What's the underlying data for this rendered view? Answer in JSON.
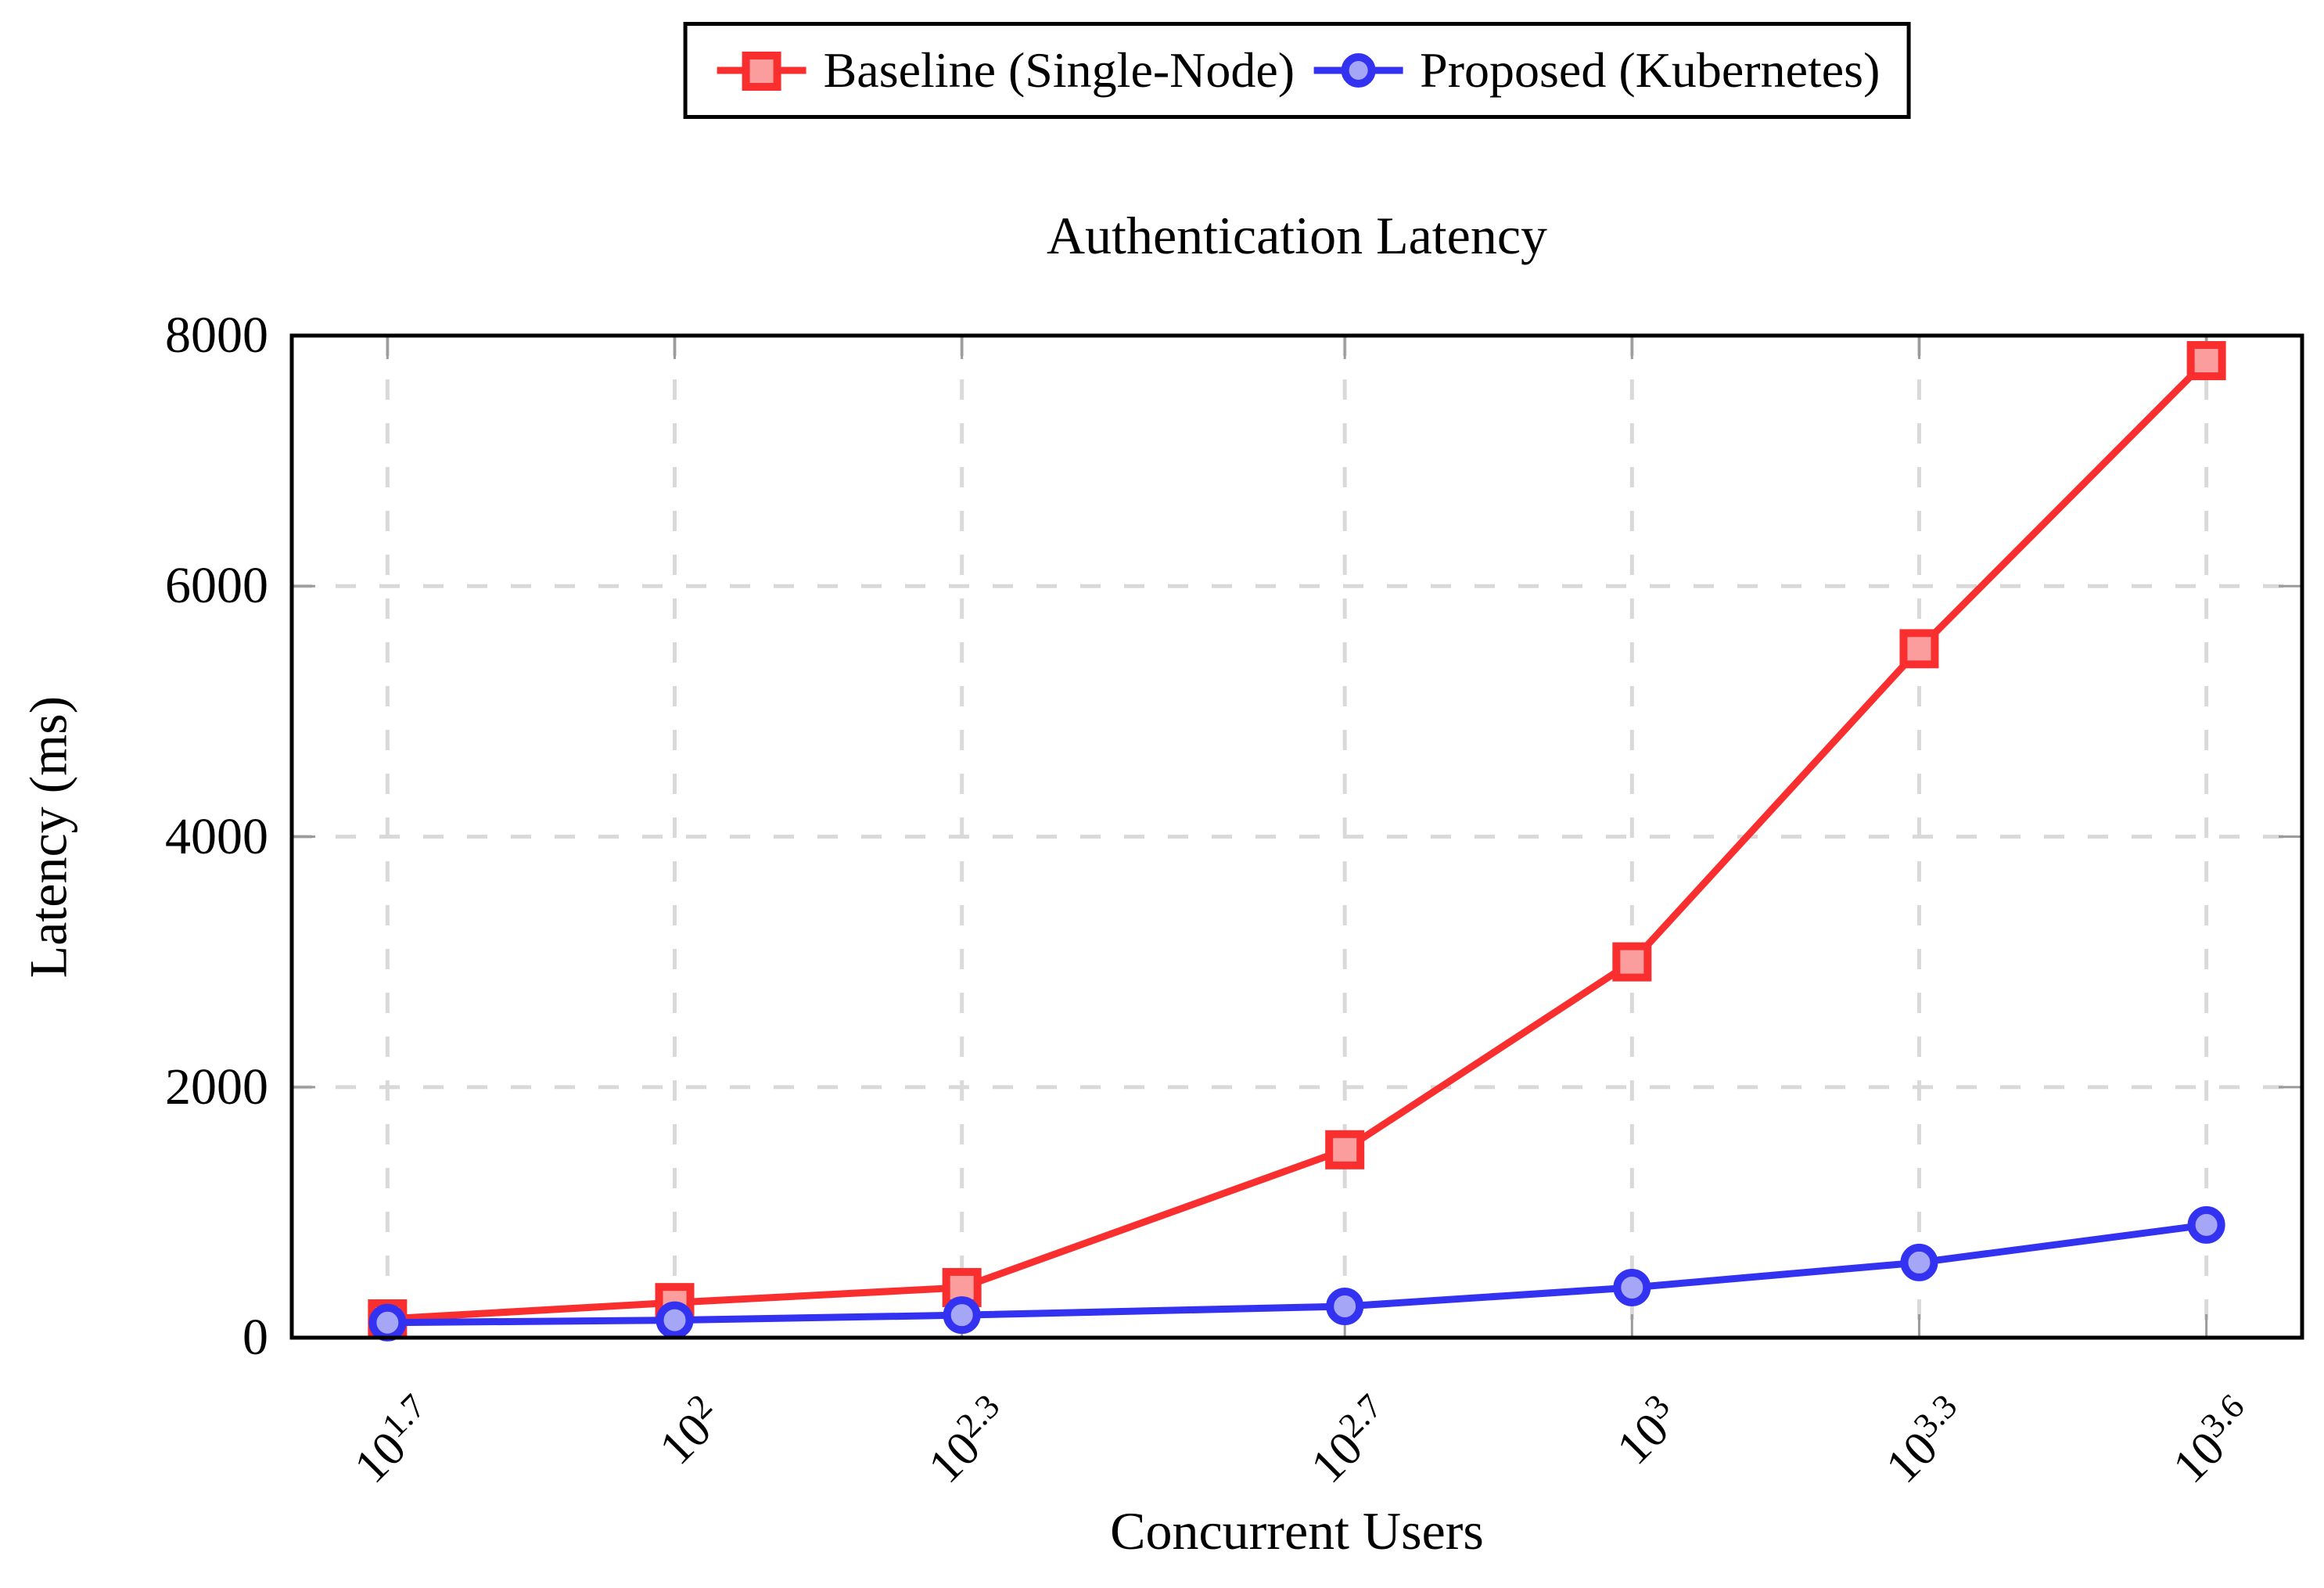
{
  "chart_data": {
    "type": "line",
    "title": "Authentication Latency",
    "xlabel": "Concurrent Users",
    "ylabel": "Latency (ms)",
    "x_scale": "log10",
    "xlim_log10": [
      1.6,
      3.7
    ],
    "ylim": [
      0,
      8000
    ],
    "grid": "dashed",
    "legend_position": "top-center-outside",
    "x_exponents": [
      1.7,
      2,
      2.3,
      2.7,
      3,
      3.3,
      3.6
    ],
    "x_users_approx": [
      50,
      100,
      200,
      500,
      1000,
      2000,
      4000
    ],
    "x_tick_labels": [
      {
        "base": "10",
        "exp": "1.7"
      },
      {
        "base": "10",
        "exp": "2"
      },
      {
        "base": "10",
        "exp": "2.3"
      },
      {
        "base": "10",
        "exp": "2.7"
      },
      {
        "base": "10",
        "exp": "3"
      },
      {
        "base": "10",
        "exp": "3.3"
      },
      {
        "base": "10",
        "exp": "3.6"
      }
    ],
    "y_ticks": [
      0,
      2000,
      4000,
      6000,
      8000
    ],
    "y_tick_labels": [
      "0",
      "2000",
      "4000",
      "6000",
      "8000"
    ],
    "series": [
      {
        "name": "Baseline (Single-Node)",
        "marker": "square",
        "color": "#f92f2f",
        "fill": "#fb9d9d",
        "values": [
          150,
          280,
          400,
          1500,
          3000,
          5500,
          7800
        ]
      },
      {
        "name": "Proposed (Kubernetes)",
        "marker": "circle",
        "color": "#3232f0",
        "fill": "#a6a6f7",
        "values": [
          120,
          140,
          180,
          250,
          400,
          600,
          900
        ]
      }
    ],
    "style": {
      "grid_color": "#d9d9d9",
      "edge_tick_color": "#9b9b9b",
      "axis_color": "#000000",
      "background": "#ffffff"
    }
  }
}
